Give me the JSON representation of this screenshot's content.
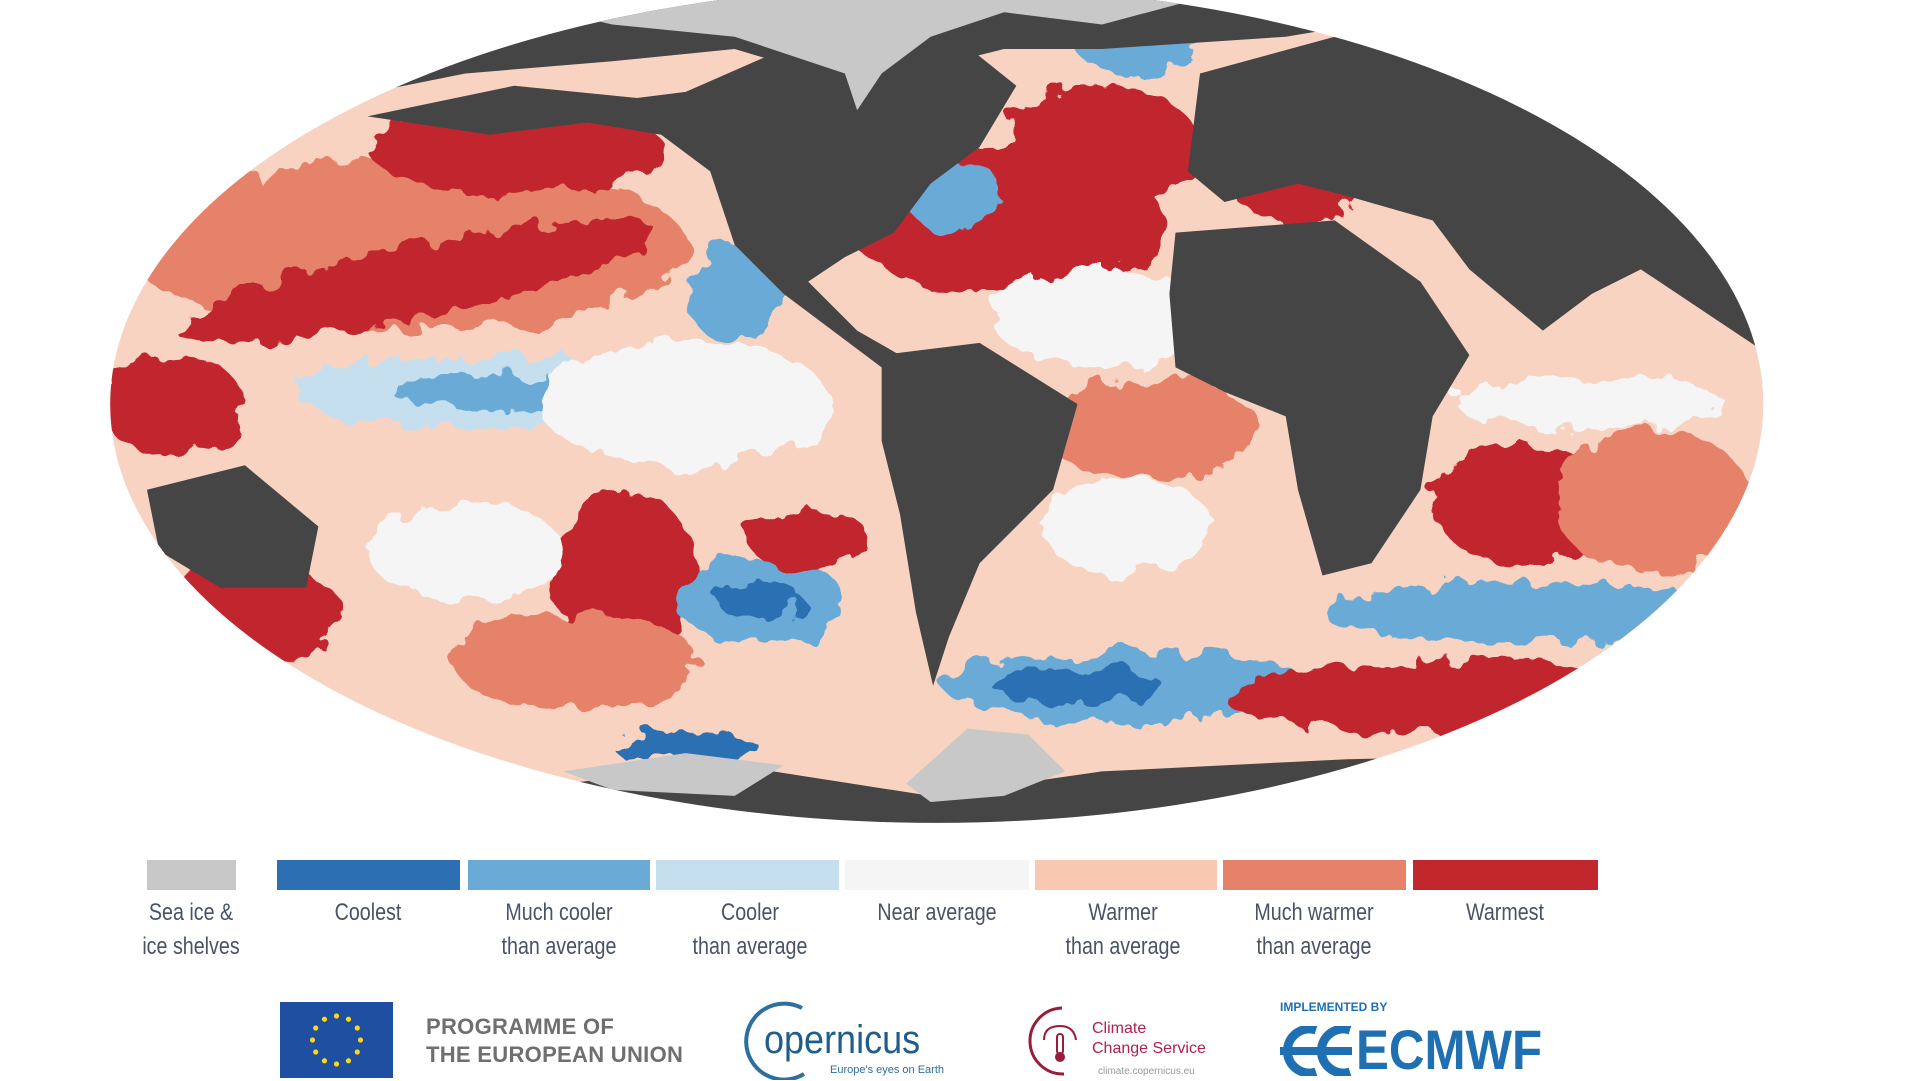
{
  "colors": {
    "land": "#454545",
    "sea_ice": "#c8c8c8",
    "coolest": "#2c6fb3",
    "much_cooler": "#6aaad6",
    "cooler": "#c6dfee",
    "near_average": "#f5f5f5",
    "warmer": "#f9c8b0",
    "much_warmer": "#e6826a",
    "warmest": "#c1272d"
  },
  "legend": [
    {
      "key": "sea_ice",
      "line1": "Sea ice &",
      "line2": "ice shelves"
    },
    {
      "key": "coolest",
      "line1": "Coolest",
      "line2": ""
    },
    {
      "key": "much_cooler",
      "line1": "Much cooler",
      "line2": "than average"
    },
    {
      "key": "cooler",
      "line1": "Cooler",
      "line2": "than average"
    },
    {
      "key": "near_average",
      "line1": "Near average",
      "line2": ""
    },
    {
      "key": "warmer",
      "line1": "Warmer",
      "line2": "than average"
    },
    {
      "key": "much_warmer",
      "line1": "Much warmer",
      "line2": "than average"
    },
    {
      "key": "warmest",
      "line1": "Warmest",
      "line2": ""
    }
  ],
  "logos": {
    "eu_line1": "PROGRAMME OF",
    "eu_line2": "THE EUROPEAN UNION",
    "copernicus": "opernicus",
    "copernicus_tagline": "Europe's eyes on Earth",
    "c3s_line1": "Climate",
    "c3s_line2": "Change Service",
    "c3s_url": "climate.copernicus.eu",
    "implemented_by": "IMPLEMENTED BY",
    "ecmwf": "ECMWF"
  }
}
